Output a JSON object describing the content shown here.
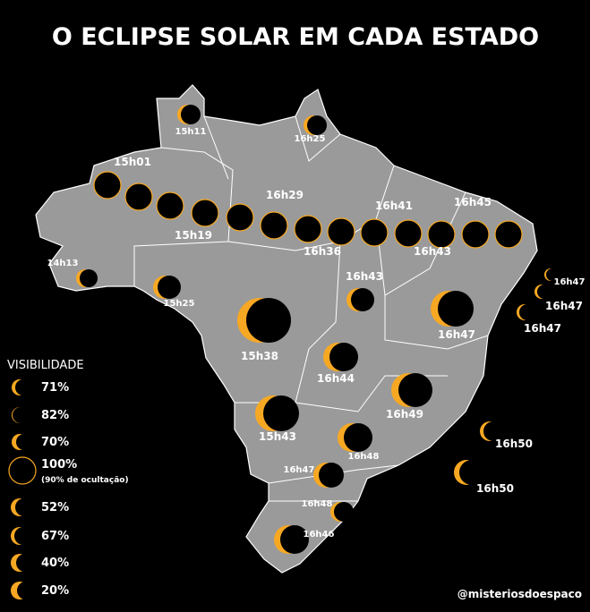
{
  "title": "O ECLIPSE SOLAR EM CADA ESTADO",
  "legend": {
    "title": "VISIBILIDADE",
    "items": [
      {
        "label": "71%"
      },
      {
        "label": "82%"
      },
      {
        "label": "70%"
      },
      {
        "label": "100%",
        "note": "(90% de ocultação)"
      },
      {
        "label": "52%"
      },
      {
        "label": "67%"
      },
      {
        "label": "40%"
      },
      {
        "label": "20%"
      }
    ]
  },
  "times": [
    "15h11",
    "16h25",
    "15h01",
    "16h29",
    "16h41",
    "16h45",
    "15h19",
    "16h36",
    "16h43",
    "14h13",
    "16h43",
    "15h25",
    "16h47",
    "16h47",
    "16h47",
    "16h47",
    "15h38",
    "16h44",
    "16h49",
    "15h43",
    "16h50",
    "16h48",
    "16h47",
    "16h50",
    "16h48",
    "16h46"
  ],
  "credit": "@misteriosdoespaco"
}
